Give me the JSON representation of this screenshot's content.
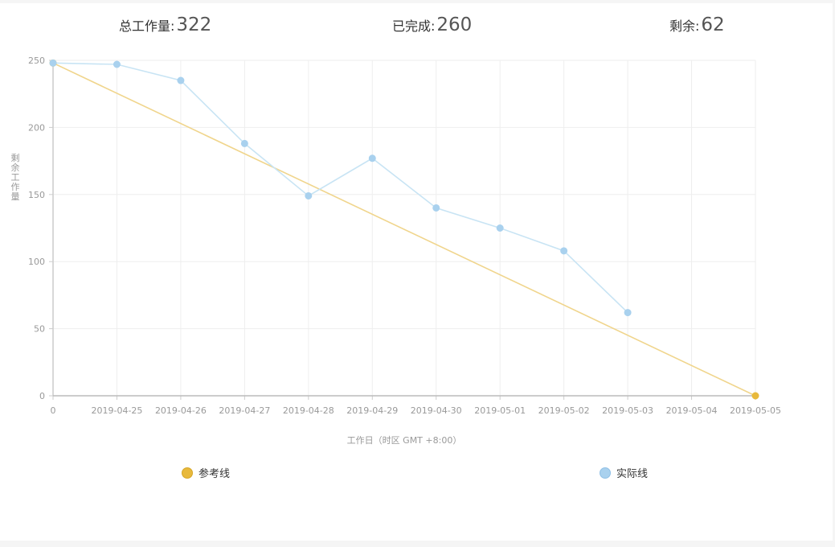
{
  "summary": {
    "total_label": "总工作量:",
    "total_value": "322",
    "done_label": "已完成:",
    "done_value": "260",
    "remain_label": "剩余:",
    "remain_value": "62"
  },
  "chart_data": {
    "type": "line",
    "title": "",
    "xlabel": "工作日（时区 GMT +8:00）",
    "ylabel": "剩余工作量",
    "categories": [
      "0",
      "2019-04-25",
      "2019-04-26",
      "2019-04-27",
      "2019-04-28",
      "2019-04-29",
      "2019-04-30",
      "2019-05-01",
      "2019-05-02",
      "2019-05-03",
      "2019-05-04",
      "2019-05-05"
    ],
    "yticks": [
      0,
      50,
      100,
      150,
      200,
      250
    ],
    "ylim": [
      0,
      250
    ],
    "grid": true,
    "legend": "bottom",
    "series": [
      {
        "name": "参考线",
        "color": "#f0d58c",
        "marker_color": "#e8b93c",
        "values": [
          248,
          null,
          null,
          null,
          null,
          null,
          null,
          null,
          null,
          null,
          null,
          0
        ]
      },
      {
        "name": "实际线",
        "color": "#c8e4f4",
        "marker_color": "#a9d1ee",
        "values": [
          248,
          247,
          235,
          188,
          149,
          177,
          140,
          125,
          108,
          62,
          null,
          null
        ]
      }
    ]
  }
}
